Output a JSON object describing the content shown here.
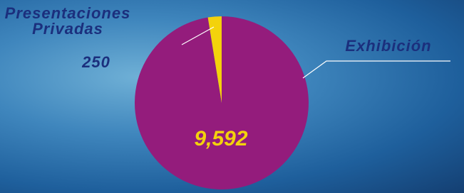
{
  "chart_data": {
    "type": "pie",
    "categories": [
      "Presentaciones Privadas",
      "Exhibición"
    ],
    "values": [
      250,
      9592
    ],
    "value_labels": [
      "250",
      "9,592"
    ],
    "colors": [
      "#f3d20c",
      "#941c7c"
    ]
  }
}
